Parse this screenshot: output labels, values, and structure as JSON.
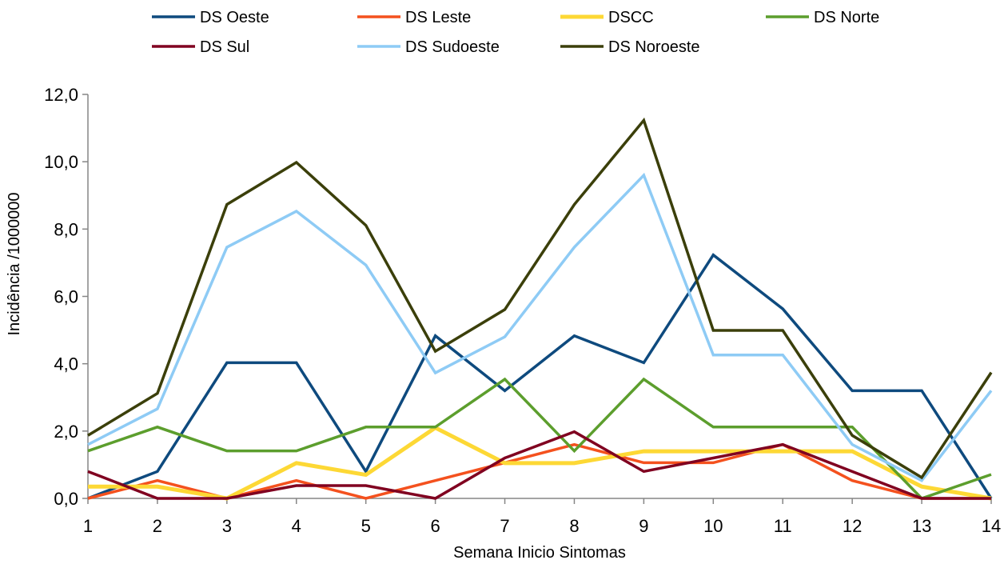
{
  "chart_data": {
    "type": "line",
    "title": "",
    "xlabel": "Semana Inicio Sintomas",
    "ylabel": "Incidência /1000000",
    "x": [
      1,
      2,
      3,
      4,
      5,
      6,
      7,
      8,
      9,
      10,
      11,
      12,
      13,
      14
    ],
    "x_tick_labels": [
      "1",
      "2",
      "3",
      "4",
      "5",
      "6",
      "7",
      "8",
      "9",
      "10",
      "11",
      "12",
      "13",
      "14"
    ],
    "y_tick_labels": [
      "0,0",
      "2,0",
      "4,0",
      "6,0",
      "8,0",
      "10,0",
      "12,0"
    ],
    "ylim": [
      0,
      12
    ],
    "grid": false,
    "legend_position": "top",
    "series": [
      {
        "name": "DS Oeste",
        "color": "#0e4a7e",
        "width": "normal",
        "values": [
          0.0,
          0.8,
          4.03,
          4.03,
          0.8,
          4.83,
          3.2,
          4.83,
          4.03,
          7.23,
          5.63,
          3.2,
          3.2,
          0.0
        ]
      },
      {
        "name": "DS Leste",
        "color": "#f4511e",
        "width": "normal",
        "values": [
          0.0,
          0.53,
          0.0,
          0.53,
          0.0,
          0.53,
          1.06,
          1.6,
          1.06,
          1.06,
          1.6,
          0.53,
          0.0,
          0.0
        ]
      },
      {
        "name": "DSCC",
        "color": "#fdd835",
        "width": "thick",
        "values": [
          0.35,
          0.35,
          0.0,
          1.05,
          0.7,
          2.1,
          1.05,
          1.05,
          1.4,
          1.4,
          1.4,
          1.4,
          0.35,
          0.0
        ]
      },
      {
        "name": "DS Norte",
        "color": "#5c9e2d",
        "width": "normal",
        "values": [
          1.41,
          2.12,
          1.41,
          1.41,
          2.12,
          2.12,
          3.54,
          1.41,
          3.54,
          2.12,
          2.12,
          2.12,
          0.0,
          0.71
        ]
      },
      {
        "name": "DS Sul",
        "color": "#800020",
        "width": "normal",
        "values": [
          0.8,
          0.0,
          0.0,
          0.38,
          0.38,
          0.0,
          1.2,
          1.98,
          0.8,
          1.2,
          1.6,
          0.8,
          0.0,
          0.0
        ]
      },
      {
        "name": "DS Sudoeste",
        "color": "#8ecbf5",
        "width": "normal",
        "values": [
          1.6,
          2.66,
          7.46,
          8.53,
          6.93,
          3.73,
          4.8,
          7.46,
          9.6,
          4.26,
          4.26,
          1.6,
          0.53,
          3.2
        ]
      },
      {
        "name": "DS Noroeste",
        "color": "#3b3f0a",
        "width": "normal",
        "values": [
          1.87,
          3.12,
          8.73,
          9.98,
          8.11,
          4.37,
          5.61,
          8.73,
          11.23,
          4.99,
          4.99,
          1.87,
          0.62,
          3.74
        ]
      }
    ]
  }
}
